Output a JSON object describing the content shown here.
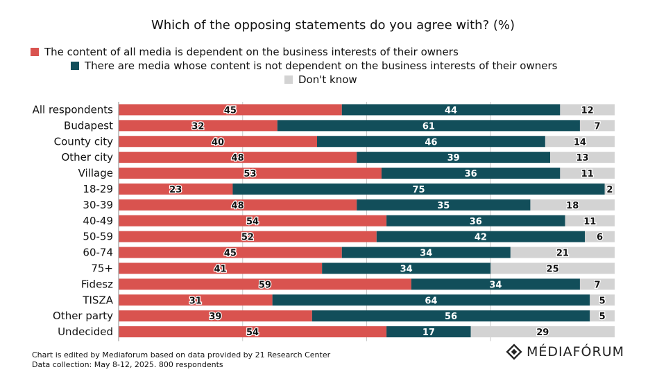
{
  "title": "Which of the opposing statements do you agree with? (%)",
  "legend": [
    {
      "label": "The content of all media is dependent on the business interests of their owners",
      "color": "#d9534f"
    },
    {
      "label": "There are media whose content is not dependent on the business interests of their owners",
      "color": "#124e5a"
    },
    {
      "label": "Don't know",
      "color": "#d3d3d3"
    }
  ],
  "footer": {
    "line1": "Chart is edited by Mediaforum based on data provided by 21 Research Center",
    "line2": "Data collection: May 8-12, 2025. 800 respondents"
  },
  "brand": {
    "name": "MÉDIAFÓRUM",
    "icon": "mediaforum-logo-icon"
  },
  "chart_data": {
    "type": "bar",
    "orientation": "horizontal",
    "stacked": true,
    "title": "Which of the opposing statements do you agree with? (%)",
    "categories": [
      "All respondents",
      "Budapest",
      "County city",
      "Other city",
      "Village",
      "18-29",
      "30-39",
      "40-49",
      "50-59",
      "60-74",
      "75+",
      "Fidesz",
      "TISZA",
      "Other party",
      "Undecided"
    ],
    "series": [
      {
        "name": "The content of all media is dependent on the business interests of their owners",
        "color": "#d9534f",
        "values": [
          45,
          32,
          40,
          48,
          53,
          23,
          48,
          54,
          52,
          45,
          41,
          59,
          31,
          39,
          54
        ]
      },
      {
        "name": "There are media whose content is not dependent on the business interests of their owners",
        "color": "#124e5a",
        "values": [
          44,
          61,
          46,
          39,
          36,
          75,
          35,
          36,
          42,
          34,
          34,
          34,
          64,
          56,
          17
        ]
      },
      {
        "name": "Don't know",
        "color": "#d3d3d3",
        "values": [
          12,
          7,
          14,
          13,
          11,
          2,
          18,
          11,
          6,
          21,
          25,
          7,
          5,
          5,
          29
        ]
      }
    ],
    "xlim": [
      0,
      100
    ],
    "grid": true,
    "legend_position": "top"
  }
}
